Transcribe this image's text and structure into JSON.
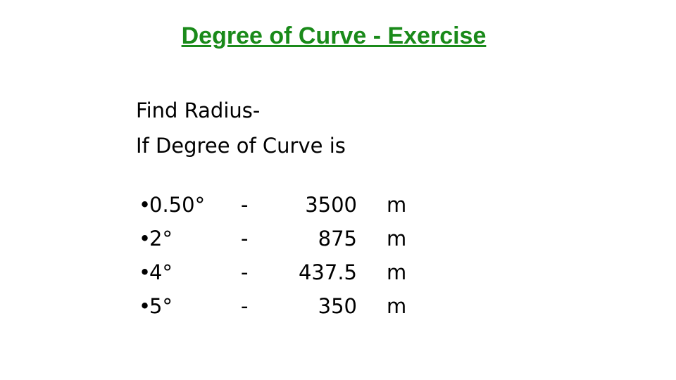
{
  "title": "Degree of Curve - Exercise",
  "question": {
    "line1": "Find Radius-",
    "line2": "If Degree of Curve is"
  },
  "rows": [
    {
      "degree": "0.50°",
      "separator": "-",
      "radius": 3500,
      "unit": "m"
    },
    {
      "degree": "2°",
      "separator": "-",
      "radius": 875,
      "unit": "m"
    },
    {
      "degree": "4°",
      "separator": "-",
      "radius": 437.5,
      "unit": "m"
    },
    {
      "degree": "5°",
      "separator": "-",
      "radius": 350,
      "unit": "m"
    }
  ]
}
